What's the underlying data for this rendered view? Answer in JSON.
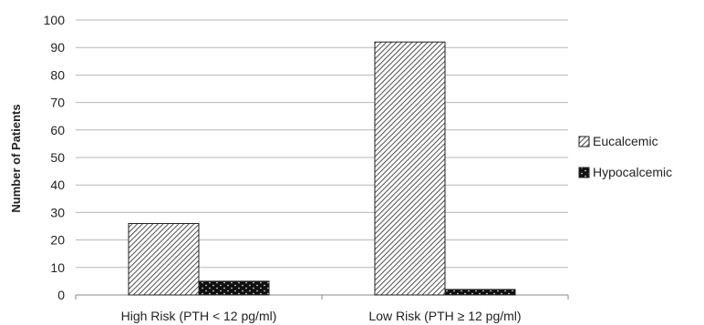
{
  "chart_data": {
    "type": "bar",
    "title": "",
    "xlabel": "",
    "ylabel": "Number of Patients",
    "ylim": [
      0,
      100
    ],
    "yticks": [
      0,
      10,
      20,
      30,
      40,
      50,
      60,
      70,
      80,
      90,
      100
    ],
    "grid": true,
    "legend_position": "right",
    "categories": [
      "High Risk (PTH < 12 pg/ml)",
      "Low Risk (PTH ≥ 12 pg/ml)"
    ],
    "series": [
      {
        "name": "Eucalcemic",
        "values": [
          26,
          92
        ],
        "pattern": "diagonal-hatch"
      },
      {
        "name": "Hypocalcemic",
        "values": [
          5,
          2
        ],
        "pattern": "black-dotted"
      }
    ]
  }
}
